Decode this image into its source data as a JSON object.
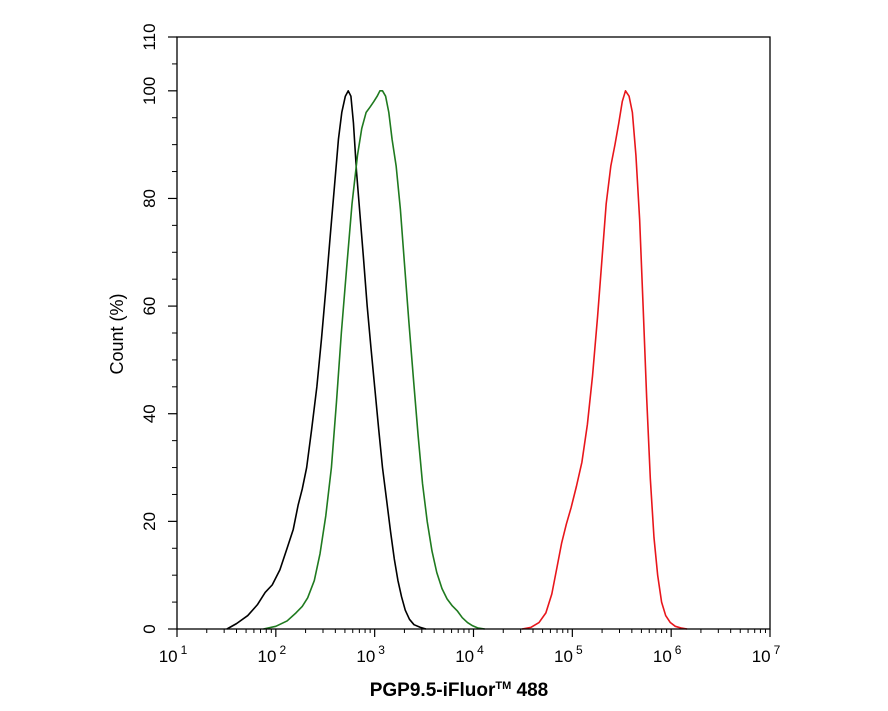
{
  "chart_data": {
    "type": "line",
    "title": "",
    "xlabel": "PGP9.5-iFluor™ 488",
    "xlabel_main": "PGP9.5-iFluor",
    "xlabel_tm": "TM",
    "xlabel_tail": " 488",
    "ylabel": "Count  (%)",
    "xscale": "log",
    "xlim": [
      10,
      10000000
    ],
    "ylim": [
      0,
      110
    ],
    "grid": false,
    "legend": "none",
    "x_ticks": [
      {
        "value": 10,
        "base": "10",
        "exp": "1"
      },
      {
        "value": 100,
        "base": "10",
        "exp": "2"
      },
      {
        "value": 1000,
        "base": "10",
        "exp": "3"
      },
      {
        "value": 10000,
        "base": "10",
        "exp": "4"
      },
      {
        "value": 100000,
        "base": "10",
        "exp": "5"
      },
      {
        "value": 1000000,
        "base": "10",
        "exp": "6"
      },
      {
        "value": 10000000,
        "base": "10",
        "exp": "7"
      }
    ],
    "y_ticks": [
      {
        "value": 0,
        "label": "0"
      },
      {
        "value": 20,
        "label": "20"
      },
      {
        "value": 40,
        "label": "40"
      },
      {
        "value": 60,
        "label": "60"
      },
      {
        "value": 80,
        "label": "80"
      },
      {
        "value": 100,
        "label": "100"
      },
      {
        "value": 110,
        "label": "110"
      }
    ],
    "series": [
      {
        "color": "#000000",
        "points": [
          [
            32,
            0
          ],
          [
            40,
            1
          ],
          [
            52,
            2.5
          ],
          [
            65,
            4.5
          ],
          [
            78,
            6.8
          ],
          [
            92,
            8.2
          ],
          [
            110,
            11
          ],
          [
            130,
            15
          ],
          [
            150,
            18.5
          ],
          [
            168,
            23
          ],
          [
            185,
            26
          ],
          [
            205,
            30
          ],
          [
            230,
            37
          ],
          [
            260,
            45
          ],
          [
            290,
            54
          ],
          [
            320,
            63
          ],
          [
            355,
            73
          ],
          [
            395,
            83
          ],
          [
            430,
            91
          ],
          [
            465,
            96
          ],
          [
            505,
            99
          ],
          [
            540,
            100
          ],
          [
            575,
            99
          ],
          [
            610,
            94
          ],
          [
            655,
            85
          ],
          [
            710,
            77
          ],
          [
            770,
            69
          ],
          [
            840,
            60
          ],
          [
            920,
            52
          ],
          [
            1000,
            45
          ],
          [
            1100,
            37
          ],
          [
            1200,
            30
          ],
          [
            1320,
            24
          ],
          [
            1450,
            18
          ],
          [
            1580,
            13
          ],
          [
            1720,
            9
          ],
          [
            1870,
            6
          ],
          [
            2040,
            3.5
          ],
          [
            2250,
            1.8
          ],
          [
            2500,
            0.8
          ],
          [
            2900,
            0.3
          ],
          [
            3300,
            0
          ]
        ]
      },
      {
        "color": "#1f7a1f",
        "points": [
          [
            75,
            0
          ],
          [
            100,
            0.5
          ],
          [
            130,
            1.5
          ],
          [
            160,
            3
          ],
          [
            185,
            4.2
          ],
          [
            210,
            5.8
          ],
          [
            245,
            9
          ],
          [
            280,
            14
          ],
          [
            320,
            21
          ],
          [
            365,
            30
          ],
          [
            410,
            42
          ],
          [
            460,
            55
          ],
          [
            520,
            67
          ],
          [
            590,
            79
          ],
          [
            670,
            88
          ],
          [
            740,
            93
          ],
          [
            820,
            96
          ],
          [
            900,
            97
          ],
          [
            980,
            98
          ],
          [
            1060,
            99
          ],
          [
            1130,
            100
          ],
          [
            1200,
            100
          ],
          [
            1290,
            99
          ],
          [
            1390,
            96
          ],
          [
            1500,
            91
          ],
          [
            1650,
            86
          ],
          [
            1820,
            78
          ],
          [
            2000,
            68
          ],
          [
            2220,
            57
          ],
          [
            2480,
            46
          ],
          [
            2750,
            36
          ],
          [
            3050,
            27
          ],
          [
            3400,
            20
          ],
          [
            3800,
            14.5
          ],
          [
            4250,
            10.5
          ],
          [
            4800,
            7.5
          ],
          [
            5400,
            5.6
          ],
          [
            6100,
            4.3
          ],
          [
            6900,
            3.3
          ],
          [
            7700,
            2.1
          ],
          [
            8700,
            1.2
          ],
          [
            9800,
            0.6
          ],
          [
            11000,
            0.2
          ],
          [
            13000,
            0
          ]
        ]
      },
      {
        "color": "#e8161b",
        "points": [
          [
            31000,
            0
          ],
          [
            38000,
            0.3
          ],
          [
            46000,
            1.2
          ],
          [
            54000,
            3
          ],
          [
            62000,
            6.5
          ],
          [
            70000,
            11.5
          ],
          [
            78000,
            16
          ],
          [
            87000,
            19.5
          ],
          [
            97000,
            22.5
          ],
          [
            110000,
            26.5
          ],
          [
            125000,
            31
          ],
          [
            142000,
            38
          ],
          [
            160000,
            47
          ],
          [
            180000,
            58
          ],
          [
            200000,
            69
          ],
          [
            220000,
            79
          ],
          [
            245000,
            86
          ],
          [
            270000,
            90
          ],
          [
            295000,
            94
          ],
          [
            320000,
            98
          ],
          [
            345000,
            100
          ],
          [
            375000,
            99
          ],
          [
            405000,
            96
          ],
          [
            440000,
            88
          ],
          [
            480000,
            76
          ],
          [
            520000,
            60
          ],
          [
            565000,
            43
          ],
          [
            615000,
            28
          ],
          [
            670000,
            17
          ],
          [
            730000,
            10
          ],
          [
            800000,
            5
          ],
          [
            880000,
            2.5
          ],
          [
            980000,
            1.2
          ],
          [
            1100000,
            0.5
          ],
          [
            1250000,
            0.2
          ],
          [
            1450000,
            0
          ]
        ]
      }
    ]
  }
}
